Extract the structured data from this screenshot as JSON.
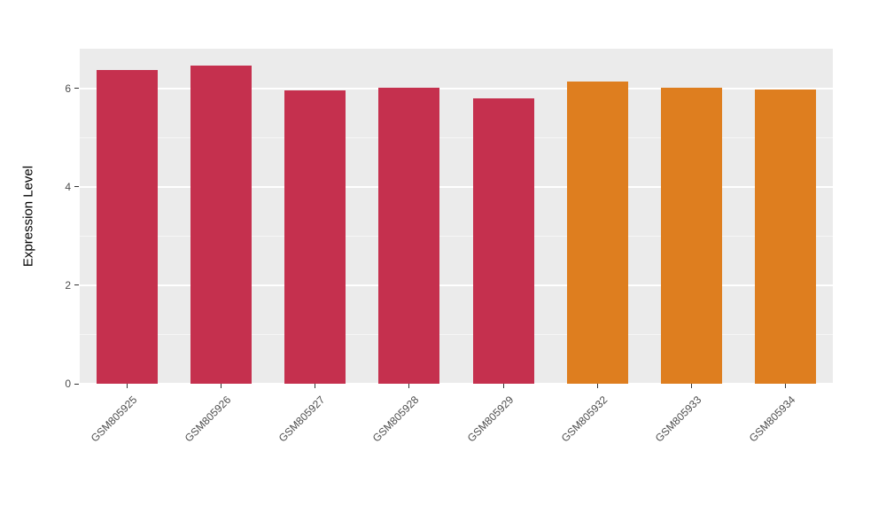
{
  "figure": {
    "background": "#FFFFFF",
    "plot_background": "#EBEBEB",
    "grid_color": "#FFFFFF",
    "tick_label_color": "#4D4D4D"
  },
  "chart_data": {
    "type": "bar",
    "title": "",
    "xlabel": "",
    "ylabel": "Expression Level",
    "categories": [
      "GSM805925",
      "GSM805926",
      "GSM805927",
      "GSM805928",
      "GSM805929",
      "GSM805932",
      "GSM805933",
      "GSM805934"
    ],
    "values": [
      6.38,
      6.47,
      5.97,
      6.02,
      5.81,
      6.15,
      6.01,
      5.99
    ],
    "bar_colors": [
      "#C5304E",
      "#C5304E",
      "#C5304E",
      "#C5304E",
      "#C5304E",
      "#DE7E1F",
      "#DE7E1F",
      "#DE7E1F"
    ],
    "ylim": [
      0,
      6.81
    ],
    "yticks": [
      0,
      2,
      4,
      6
    ],
    "yticks_minor": [
      1,
      3,
      5
    ],
    "grid": true,
    "legend_position": "none",
    "bar_width_fraction": 0.65
  }
}
